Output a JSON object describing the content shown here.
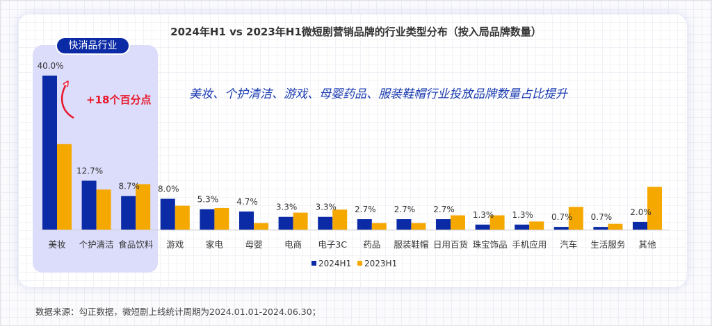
{
  "chart_data": {
    "type": "bar",
    "title": "2024年H1 vs 2023年H1微短剧营销品牌的行业类型分布（按入局品牌数量）",
    "subtitle": "美妆、个护清洁、游戏、母婴药品、服装鞋帽行业投放品牌数量占比提升",
    "categories": [
      "美妆",
      "个护清洁",
      "食品饮料",
      "游戏",
      "家电",
      "母婴",
      "电商",
      "电子3C",
      "药品",
      "服装鞋帽",
      "日用百货",
      "珠宝饰品",
      "手机应用",
      "汽车",
      "生活服务",
      "其他"
    ],
    "series": [
      {
        "name": "2024H1",
        "color": "#0b2aa6",
        "values": [
          40.0,
          12.7,
          8.7,
          8.0,
          5.3,
          4.7,
          3.3,
          3.3,
          2.7,
          2.7,
          2.7,
          1.3,
          1.3,
          0.7,
          0.7,
          2.0
        ],
        "labels": [
          "40.0%",
          "12.7%",
          "8.7%",
          "8.0%",
          "5.3%",
          "4.7%",
          "3.3%",
          "3.3%",
          "2.7%",
          "2.7%",
          "2.7%",
          "1.3%",
          "1.3%",
          "0.7%",
          "0.7%",
          "2.0%"
        ]
      },
      {
        "name": "2023H1",
        "color": "#f5a800",
        "values": [
          22.2,
          10.4,
          11.8,
          6.2,
          5.6,
          1.7,
          4.4,
          5.2,
          1.7,
          1.7,
          3.7,
          3.7,
          2.1,
          5.9,
          1.5,
          11.1
        ]
      }
    ],
    "ylim": [
      0,
      40
    ],
    "grid": false,
    "legend_position": "bottom-center"
  },
  "highlight": {
    "label": "快消品行业",
    "color": "#dcdcfb",
    "annotation": "+18个百分点",
    "annotation_color": "#e8172a"
  },
  "source": "数据来源：勾正数据，微短剧上线统计周期为2024.01.01-2024.06.30；"
}
